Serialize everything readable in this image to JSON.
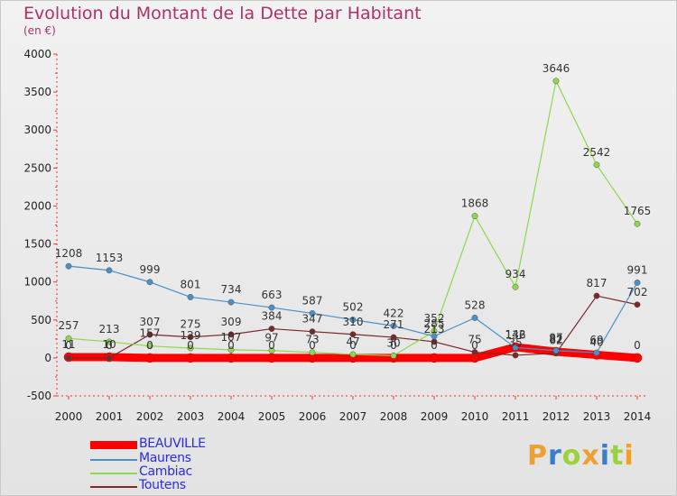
{
  "title": "Evolution du Montant de la Dette par Habitant",
  "subtitle": "(en €)",
  "logo": {
    "letters": [
      "P",
      "r",
      "o",
      "x",
      "i",
      "t",
      "i"
    ],
    "colors": [
      "#f0a030",
      "#3a7ec8",
      "#9ad23a",
      "#f0a030",
      "#3a7ec8",
      "#9ad23a",
      "#f0a030"
    ]
  },
  "chart_data": {
    "type": "line",
    "x": [
      "2000",
      "2001",
      "2002",
      "2003",
      "2004",
      "2005",
      "2006",
      "2007",
      "2008",
      "2009",
      "2010",
      "2011",
      "2012",
      "2013",
      "2014"
    ],
    "ylim": [
      -500,
      4000
    ],
    "yticks": [
      -500,
      0,
      500,
      1000,
      1500,
      2000,
      2500,
      3000,
      3500,
      4000
    ],
    "grid": false,
    "legend_position": "bottom-left",
    "series": [
      {
        "name": "BEAUVILLE",
        "color": "#ff0000",
        "label_color": "#0000ff",
        "values": [
          11,
          10,
          0,
          0,
          0,
          0,
          0,
          0,
          0,
          0,
          0,
          142,
          82,
          40,
          0
        ],
        "labels": [
          "11",
          "10",
          "0",
          "0",
          "0",
          "0",
          "0",
          "0",
          "0",
          "0",
          "0",
          "142",
          "82",
          "40",
          "0"
        ]
      },
      {
        "name": "Maurens",
        "color": "#4a90c8",
        "label_color": "#3a78c8",
        "values": [
          1208,
          1153,
          999,
          801,
          734,
          663,
          587,
          502,
          422,
          285,
          528,
          136,
          97,
          69,
          991
        ],
        "labels": [
          "1208",
          "1153",
          "999",
          "801",
          "734",
          "663",
          "587",
          "502",
          "422",
          "285",
          "528",
          "136",
          "97",
          "69",
          "991"
        ]
      },
      {
        "name": "Cambiac",
        "color": "#8ed850",
        "label_color": "#5aa028",
        "values": [
          257,
          213,
          157,
          129,
          107,
          97,
          73,
          47,
          30,
          352,
          1868,
          934,
          3646,
          2542,
          1765
        ],
        "labels": [
          "257",
          "213",
          "157",
          "129",
          "107",
          "97",
          "73",
          "47",
          "30",
          "352",
          "1868",
          "934",
          "3646",
          "2542",
          "1765"
        ]
      },
      {
        "name": "Toutens",
        "color": "#7a2828",
        "label_color": "#7a2828",
        "values": [
          0,
          0,
          307,
          275,
          309,
          384,
          347,
          310,
          271,
          213,
          75,
          35,
          62,
          817,
          702
        ],
        "labels": [
          "0",
          "0",
          "307",
          "275",
          "309",
          "384",
          "347",
          "310",
          "271",
          "213",
          "75",
          "35",
          "62",
          "817",
          "702"
        ]
      }
    ]
  }
}
